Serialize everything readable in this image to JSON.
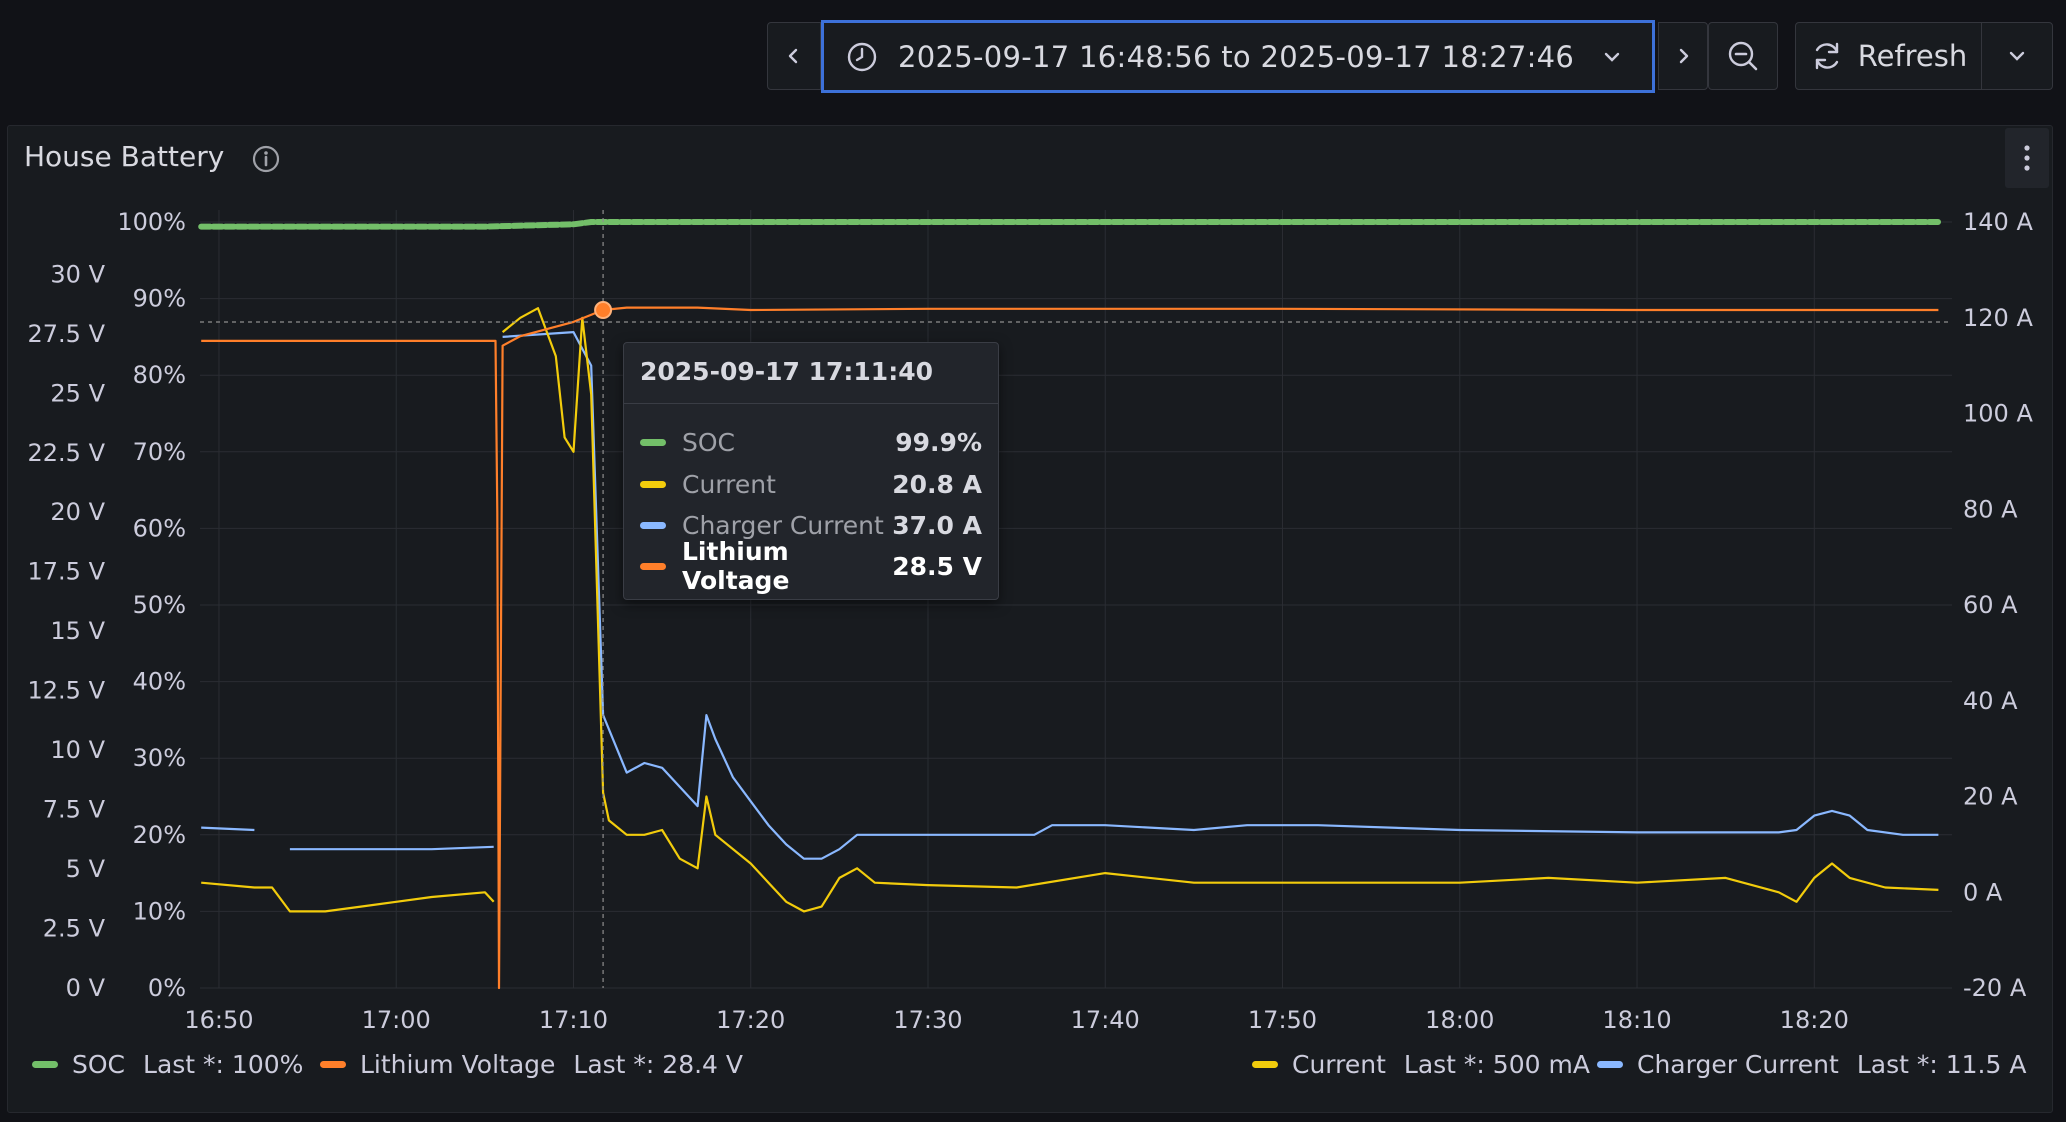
{
  "toolbar": {
    "time_range": "2025-09-17 16:48:56 to 2025-09-17 18:27:46",
    "refresh_label": "Refresh"
  },
  "panel": {
    "title": "House Battery"
  },
  "tooltip": {
    "time": "2025-09-17 17:11:40",
    "rows": [
      {
        "label": "SOC",
        "value": "99.9%",
        "color": "#73bf69"
      },
      {
        "label": "Current",
        "value": "20.8 A",
        "color": "#f2cc0c"
      },
      {
        "label": "Charger Current",
        "value": "37.0 A",
        "color": "#8ab8ff"
      },
      {
        "label": "Lithium Voltage",
        "value": "28.5 V",
        "color": "#ff7f2a"
      }
    ]
  },
  "legend": [
    {
      "name": "SOC",
      "last": "Last *: 100%",
      "color": "#73bf69"
    },
    {
      "name": "Lithium Voltage",
      "last": "Last *: 28.4 V",
      "color": "#ff7f2a"
    },
    {
      "name": "Current",
      "last": "Last *: 500 mA",
      "color": "#f2cc0c"
    },
    {
      "name": "Charger Current",
      "last": "Last *: 11.5 A",
      "color": "#8ab8ff"
    }
  ],
  "chart_data": {
    "type": "line",
    "x_ticks": [
      "16:50",
      "17:00",
      "17:10",
      "17:20",
      "17:30",
      "17:40",
      "17:50",
      "18:00",
      "18:10",
      "18:20"
    ],
    "x_range_minutes": [
      -1.07,
      97.77
    ],
    "axes": {
      "voltage": {
        "ticks": [
          "0 V",
          "2.5 V",
          "5 V",
          "7.5 V",
          "10 V",
          "12.5 V",
          "15 V",
          "17.5 V",
          "20 V",
          "22.5 V",
          "25 V",
          "27.5 V",
          "30 V"
        ],
        "range": [
          0,
          32
        ]
      },
      "percent": {
        "ticks": [
          "0%",
          "10%",
          "20%",
          "30%",
          "40%",
          "50%",
          "60%",
          "70%",
          "80%",
          "90%",
          "100%"
        ],
        "range": [
          0,
          100
        ]
      },
      "current": {
        "ticks": [
          "-20 A",
          "0 A",
          "20 A",
          "40 A",
          "60 A",
          "80 A",
          "100 A",
          "120 A",
          "140 A"
        ],
        "range": [
          -20,
          140
        ]
      }
    },
    "hover_minute": 21.67,
    "series": [
      {
        "name": "SOC",
        "axis": "percent",
        "color": "#73bf69",
        "points": [
          [
            -1,
            99.4
          ],
          [
            15,
            99.4
          ],
          [
            20,
            99.7
          ],
          [
            21,
            100
          ],
          [
            40,
            100
          ],
          [
            60,
            100
          ],
          [
            80,
            100
          ],
          [
            97,
            100
          ]
        ]
      },
      {
        "name": "Lithium Voltage",
        "axis": "voltage",
        "color": "#ff7f2a",
        "points": [
          [
            -1,
            27.2
          ],
          [
            15.6,
            27.2
          ],
          [
            15.7,
            20
          ],
          [
            15.8,
            0
          ],
          [
            16,
            27
          ],
          [
            17,
            27.4
          ],
          [
            18,
            27.6
          ],
          [
            20,
            28
          ],
          [
            21.67,
            28.5
          ],
          [
            23,
            28.6
          ],
          [
            27,
            28.6
          ],
          [
            30,
            28.5
          ],
          [
            40,
            28.55
          ],
          [
            60,
            28.55
          ],
          [
            80,
            28.5
          ],
          [
            97,
            28.5
          ]
        ]
      },
      {
        "name": "Charger Current",
        "axis": "current",
        "color": "#8ab8ff",
        "points": [
          [
            -1,
            13.5
          ],
          [
            2,
            13
          ],
          [
            2.5,
            null
          ],
          [
            4,
            9
          ],
          [
            12,
            9
          ],
          [
            15.5,
            9.5
          ],
          [
            15.7,
            null
          ],
          [
            16,
            116
          ],
          [
            20,
            117
          ],
          [
            21,
            110
          ],
          [
            21.67,
            37
          ],
          [
            23,
            25
          ],
          [
            24,
            27
          ],
          [
            25,
            26
          ],
          [
            26,
            22
          ],
          [
            27,
            18
          ],
          [
            27.5,
            37
          ],
          [
            28,
            32
          ],
          [
            29,
            24
          ],
          [
            30,
            19
          ],
          [
            31,
            14
          ],
          [
            32,
            10
          ],
          [
            33,
            7
          ],
          [
            34,
            7
          ],
          [
            35,
            9
          ],
          [
            36,
            12
          ],
          [
            40,
            12
          ],
          [
            46,
            12
          ],
          [
            47,
            14
          ],
          [
            50,
            14
          ],
          [
            55,
            13
          ],
          [
            58,
            14
          ],
          [
            62,
            14
          ],
          [
            70,
            13
          ],
          [
            80,
            12.5
          ],
          [
            88,
            12.5
          ],
          [
            89,
            13
          ],
          [
            90,
            16
          ],
          [
            91,
            17
          ],
          [
            92,
            16
          ],
          [
            93,
            13
          ],
          [
            95,
            12
          ],
          [
            97,
            12
          ]
        ]
      },
      {
        "name": "Current",
        "axis": "current",
        "color": "#f2cc0c",
        "points": [
          [
            -1,
            2
          ],
          [
            2,
            1
          ],
          [
            3,
            1
          ],
          [
            4,
            -4
          ],
          [
            6,
            -4
          ],
          [
            8,
            -3
          ],
          [
            10,
            -2
          ],
          [
            12,
            -1
          ],
          [
            15,
            0
          ],
          [
            15.5,
            -2
          ],
          [
            15.7,
            null
          ],
          [
            16,
            117
          ],
          [
            17,
            120
          ],
          [
            18,
            122
          ],
          [
            19,
            112
          ],
          [
            19.5,
            95
          ],
          [
            20,
            92
          ],
          [
            20.5,
            120
          ],
          [
            21,
            104
          ],
          [
            21.67,
            20.8
          ],
          [
            22,
            15
          ],
          [
            23,
            12
          ],
          [
            24,
            12
          ],
          [
            25,
            13
          ],
          [
            26,
            7
          ],
          [
            27,
            5
          ],
          [
            27.5,
            20
          ],
          [
            28,
            12
          ],
          [
            30,
            6
          ],
          [
            31,
            2
          ],
          [
            32,
            -2
          ],
          [
            33,
            -4
          ],
          [
            34,
            -3
          ],
          [
            35,
            3
          ],
          [
            36,
            5
          ],
          [
            37,
            2
          ],
          [
            40,
            1.5
          ],
          [
            45,
            1
          ],
          [
            50,
            4
          ],
          [
            55,
            2
          ],
          [
            60,
            2
          ],
          [
            65,
            2
          ],
          [
            70,
            2
          ],
          [
            75,
            3
          ],
          [
            80,
            2
          ],
          [
            85,
            3
          ],
          [
            88,
            0
          ],
          [
            89,
            -2
          ],
          [
            90,
            3
          ],
          [
            91,
            6
          ],
          [
            92,
            3
          ],
          [
            94,
            1
          ],
          [
            97,
            0.5
          ]
        ]
      }
    ]
  }
}
